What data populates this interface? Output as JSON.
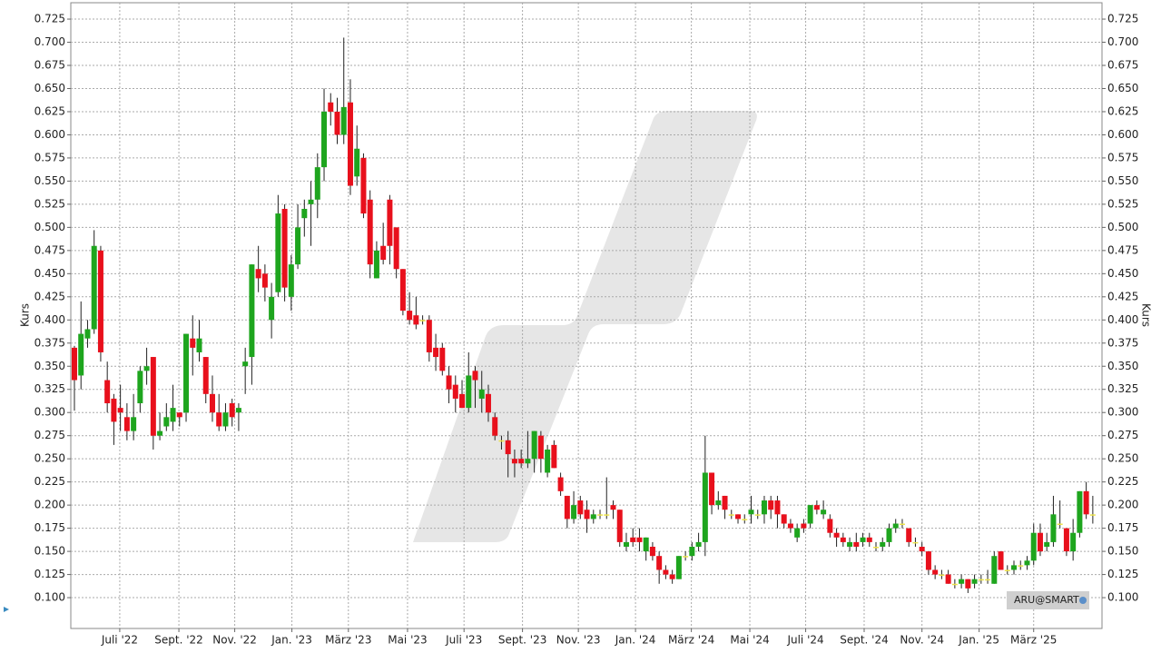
{
  "chart_data": {
    "type": "candlestick",
    "y_label": "Kurs",
    "legend_label": "ARU@SMART",
    "up_color": "#1ea51e",
    "down_color": "#e8101c",
    "flat_color": "#ece24a",
    "wick_color": "#222222",
    "grid": true,
    "open": [
      0.37,
      0.34,
      0.38,
      0.39,
      0.475,
      0.335,
      0.315,
      0.305,
      0.295,
      0.28,
      0.31,
      0.345,
      0.36,
      0.275,
      0.285,
      0.29,
      0.3,
      0.3,
      0.38,
      0.365,
      0.36,
      0.32,
      0.3,
      0.285,
      0.31,
      0.3,
      0.35,
      0.36,
      0.455,
      0.45,
      0.4,
      0.43,
      0.52,
      0.425,
      0.46,
      0.51,
      0.525,
      0.53,
      0.565,
      0.635,
      0.625,
      0.6,
      0.635,
      0.555,
      0.575,
      0.53,
      0.445,
      0.48,
      0.53,
      0.5,
      0.455,
      0.41,
      0.405,
      0.4,
      0.4,
      0.37,
      0.37,
      0.34,
      0.33,
      0.32,
      0.305,
      0.345,
      0.315,
      0.32,
      0.295,
      0.27,
      0.27,
      0.25,
      0.25,
      0.245,
      0.25,
      0.275,
      0.235,
      0.265,
      0.23,
      0.21,
      0.185,
      0.205,
      0.195,
      0.185,
      0.19,
      0.19,
      0.2,
      0.195,
      0.155,
      0.165,
      0.165,
      0.15,
      0.155,
      0.145,
      0.13,
      0.125,
      0.12,
      0.145,
      0.145,
      0.155,
      0.16,
      0.235,
      0.2,
      0.21,
      0.19,
      0.19,
      0.185,
      0.19,
      0.19,
      0.19,
      0.205,
      0.205,
      0.19,
      0.18,
      0.165,
      0.18,
      0.18,
      0.2,
      0.19,
      0.185,
      0.17,
      0.165,
      0.155,
      0.16,
      0.16,
      0.165,
      0.155,
      0.155,
      0.16,
      0.175,
      0.18,
      0.175,
      0.16,
      0.155,
      0.15,
      0.13,
      0.125,
      0.125,
      0.115,
      0.115,
      0.12,
      0.115,
      0.12,
      0.12,
      0.115,
      0.15,
      0.13,
      0.13,
      0.135,
      0.135,
      0.14,
      0.17,
      0.155,
      0.16,
      0.18,
      0.175,
      0.15,
      0.17,
      0.215,
      0.19
    ],
    "high": [
      0.372,
      0.42,
      0.4,
      0.497,
      0.48,
      0.355,
      0.32,
      0.33,
      0.31,
      0.32,
      0.35,
      0.37,
      0.36,
      0.3,
      0.31,
      0.33,
      0.3,
      0.385,
      0.405,
      0.4,
      0.36,
      0.34,
      0.32,
      0.31,
      0.315,
      0.31,
      0.37,
      0.46,
      0.48,
      0.46,
      0.44,
      0.535,
      0.525,
      0.47,
      0.525,
      0.53,
      0.55,
      0.58,
      0.65,
      0.645,
      0.64,
      0.705,
      0.66,
      0.61,
      0.58,
      0.54,
      0.485,
      0.505,
      0.535,
      0.5,
      0.455,
      0.43,
      0.425,
      0.405,
      0.405,
      0.385,
      0.375,
      0.35,
      0.34,
      0.335,
      0.365,
      0.35,
      0.345,
      0.33,
      0.3,
      0.275,
      0.28,
      0.26,
      0.26,
      0.28,
      0.28,
      0.28,
      0.265,
      0.27,
      0.235,
      0.21,
      0.215,
      0.21,
      0.205,
      0.195,
      0.195,
      0.23,
      0.205,
      0.195,
      0.17,
      0.175,
      0.175,
      0.165,
      0.16,
      0.15,
      0.135,
      0.13,
      0.145,
      0.15,
      0.16,
      0.17,
      0.275,
      0.235,
      0.215,
      0.21,
      0.195,
      0.19,
      0.19,
      0.21,
      0.195,
      0.21,
      0.21,
      0.21,
      0.19,
      0.185,
      0.18,
      0.185,
      0.2,
      0.205,
      0.205,
      0.19,
      0.175,
      0.17,
      0.165,
      0.17,
      0.17,
      0.17,
      0.16,
      0.165,
      0.18,
      0.185,
      0.185,
      0.175,
      0.165,
      0.16,
      0.15,
      0.135,
      0.13,
      0.13,
      0.12,
      0.125,
      0.12,
      0.125,
      0.125,
      0.13,
      0.15,
      0.15,
      0.135,
      0.14,
      0.14,
      0.145,
      0.18,
      0.18,
      0.17,
      0.21,
      0.205,
      0.175,
      0.185,
      0.215,
      0.225,
      0.21
    ],
    "low": [
      0.302,
      0.325,
      0.37,
      0.385,
      0.355,
      0.3,
      0.265,
      0.28,
      0.27,
      0.27,
      0.3,
      0.33,
      0.26,
      0.27,
      0.28,
      0.28,
      0.285,
      0.29,
      0.34,
      0.355,
      0.31,
      0.29,
      0.28,
      0.28,
      0.285,
      0.28,
      0.32,
      0.33,
      0.43,
      0.42,
      0.38,
      0.425,
      0.42,
      0.41,
      0.455,
      0.49,
      0.48,
      0.51,
      0.55,
      0.61,
      0.59,
      0.59,
      0.535,
      0.545,
      0.51,
      0.445,
      0.445,
      0.46,
      0.46,
      0.445,
      0.405,
      0.395,
      0.39,
      0.395,
      0.355,
      0.345,
      0.34,
      0.31,
      0.3,
      0.305,
      0.3,
      0.305,
      0.3,
      0.29,
      0.27,
      0.26,
      0.23,
      0.23,
      0.24,
      0.24,
      0.235,
      0.235,
      0.23,
      0.24,
      0.21,
      0.175,
      0.18,
      0.185,
      0.17,
      0.18,
      0.185,
      0.185,
      0.185,
      0.155,
      0.15,
      0.155,
      0.15,
      0.14,
      0.14,
      0.115,
      0.12,
      0.115,
      0.12,
      0.14,
      0.14,
      0.15,
      0.145,
      0.19,
      0.195,
      0.185,
      0.185,
      0.18,
      0.18,
      0.18,
      0.185,
      0.18,
      0.185,
      0.175,
      0.175,
      0.17,
      0.16,
      0.17,
      0.175,
      0.19,
      0.185,
      0.165,
      0.155,
      0.155,
      0.15,
      0.15,
      0.155,
      0.155,
      0.15,
      0.15,
      0.155,
      0.17,
      0.175,
      0.155,
      0.155,
      0.145,
      0.125,
      0.12,
      0.12,
      0.115,
      0.11,
      0.11,
      0.105,
      0.11,
      0.115,
      0.115,
      0.115,
      0.13,
      0.125,
      0.125,
      0.13,
      0.13,
      0.135,
      0.145,
      0.15,
      0.155,
      0.175,
      0.145,
      0.14,
      0.165,
      0.185,
      0.18
    ],
    "close": [
      0.335,
      0.385,
      0.39,
      0.48,
      0.365,
      0.31,
      0.29,
      0.3,
      0.28,
      0.295,
      0.345,
      0.35,
      0.275,
      0.28,
      0.295,
      0.305,
      0.295,
      0.385,
      0.37,
      0.38,
      0.32,
      0.3,
      0.285,
      0.3,
      0.295,
      0.305,
      0.355,
      0.46,
      0.445,
      0.435,
      0.425,
      0.515,
      0.435,
      0.46,
      0.5,
      0.52,
      0.53,
      0.565,
      0.625,
      0.625,
      0.6,
      0.63,
      0.545,
      0.585,
      0.515,
      0.46,
      0.475,
      0.465,
      0.48,
      0.455,
      0.41,
      0.4,
      0.395,
      0.4,
      0.365,
      0.36,
      0.345,
      0.325,
      0.315,
      0.305,
      0.34,
      0.335,
      0.325,
      0.3,
      0.275,
      0.27,
      0.255,
      0.245,
      0.245,
      0.25,
      0.28,
      0.25,
      0.26,
      0.24,
      0.215,
      0.185,
      0.2,
      0.19,
      0.185,
      0.19,
      0.19,
      0.19,
      0.195,
      0.16,
      0.16,
      0.16,
      0.16,
      0.165,
      0.145,
      0.13,
      0.125,
      0.12,
      0.145,
      0.145,
      0.155,
      0.16,
      0.235,
      0.2,
      0.205,
      0.195,
      0.19,
      0.185,
      0.185,
      0.195,
      0.19,
      0.205,
      0.195,
      0.19,
      0.18,
      0.175,
      0.175,
      0.175,
      0.2,
      0.195,
      0.195,
      0.17,
      0.165,
      0.16,
      0.16,
      0.155,
      0.165,
      0.16,
      0.155,
      0.16,
      0.175,
      0.18,
      0.18,
      0.16,
      0.16,
      0.15,
      0.13,
      0.125,
      0.125,
      0.115,
      0.115,
      0.12,
      0.11,
      0.12,
      0.12,
      0.12,
      0.145,
      0.13,
      0.13,
      0.135,
      0.135,
      0.14,
      0.17,
      0.15,
      0.16,
      0.19,
      0.18,
      0.15,
      0.17,
      0.215,
      0.19,
      0.19
    ],
    "xlim": [
      -0.55,
      156.4
    ],
    "xticks": [
      {
        "value": 6.9,
        "label": "Juli '22"
      },
      {
        "value": 15.9,
        "label": "Sept. '22"
      },
      {
        "value": 24.4,
        "label": "Nov. '22"
      },
      {
        "value": 33.1,
        "label": "Jan. '23"
      },
      {
        "value": 41.7,
        "label": "März '23"
      },
      {
        "value": 50.7,
        "label": "Mai '23"
      },
      {
        "value": 59.3,
        "label": "Juli '23"
      },
      {
        "value": 68.2,
        "label": "Sept. '23"
      },
      {
        "value": 76.7,
        "label": "Nov. '23"
      },
      {
        "value": 85.4,
        "label": "Jan. '24"
      },
      {
        "value": 93.9,
        "label": "März '24"
      },
      {
        "value": 102.8,
        "label": "Mai '24"
      },
      {
        "value": 111.3,
        "label": "Juli '24"
      },
      {
        "value": 120.2,
        "label": "Sept. '24"
      },
      {
        "value": 129,
        "label": "Nov. '24"
      },
      {
        "value": 137.7,
        "label": "Jan. '25"
      },
      {
        "value": 146,
        "label": "März '25"
      }
    ],
    "ylim": [
      0.0667,
      0.7427
    ],
    "yticks": [
      {
        "value": 0.1,
        "label": "0.100"
      },
      {
        "value": 0.125,
        "label": "0.125"
      },
      {
        "value": 0.15,
        "label": "0.150"
      },
      {
        "value": 0.175,
        "label": "0.175"
      },
      {
        "value": 0.2,
        "label": "0.200"
      },
      {
        "value": 0.225,
        "label": "0.225"
      },
      {
        "value": 0.25,
        "label": "0.250"
      },
      {
        "value": 0.275,
        "label": "0.275"
      },
      {
        "value": 0.3,
        "label": "0.300"
      },
      {
        "value": 0.325,
        "label": "0.325"
      },
      {
        "value": 0.35,
        "label": "0.350"
      },
      {
        "value": 0.375,
        "label": "0.375"
      },
      {
        "value": 0.4,
        "label": "0.400"
      },
      {
        "value": 0.425,
        "label": "0.425"
      },
      {
        "value": 0.45,
        "label": "0.450"
      },
      {
        "value": 0.475,
        "label": "0.475"
      },
      {
        "value": 0.5,
        "label": "0.500"
      },
      {
        "value": 0.525,
        "label": "0.525"
      },
      {
        "value": 0.55,
        "label": "0.550"
      },
      {
        "value": 0.575,
        "label": "0.575"
      },
      {
        "value": 0.6,
        "label": "0.600"
      },
      {
        "value": 0.625,
        "label": "0.625"
      },
      {
        "value": 0.65,
        "label": "0.650"
      },
      {
        "value": 0.675,
        "label": "0.675"
      },
      {
        "value": 0.7,
        "label": "0.700"
      },
      {
        "value": 0.725,
        "label": "0.725"
      }
    ]
  }
}
